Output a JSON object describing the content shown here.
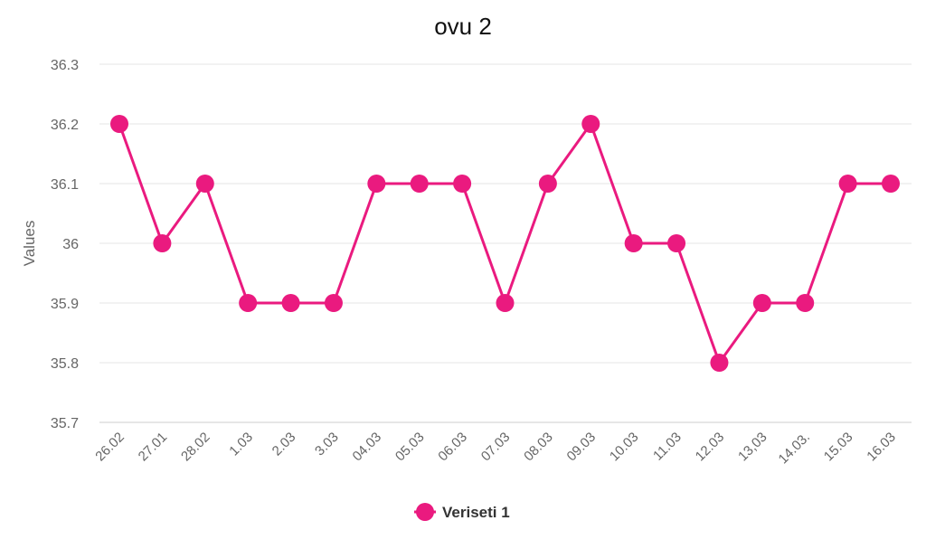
{
  "chart_data": {
    "type": "line",
    "title": "ovu 2",
    "xlabel": "",
    "ylabel": "Values",
    "ylim": [
      35.7,
      36.3
    ],
    "yticks": [
      "36.3",
      "36.2",
      "36.1",
      "36",
      "35.9",
      "35.8",
      "35.7"
    ],
    "categories": [
      "26.02",
      "27.01",
      "28.02",
      "1.03",
      "2.03",
      "3.03",
      "04.03",
      "05.03",
      "06.03",
      "07.03",
      "08.03",
      "09.03",
      "10.03",
      "11.03",
      "12.03",
      "13,03",
      "14.03.",
      "15.03",
      "16.03"
    ],
    "series": [
      {
        "name": "Veriseti 1",
        "color": "#ea1a7f",
        "values": [
          36.2,
          36.0,
          36.1,
          35.9,
          35.9,
          35.9,
          36.1,
          36.1,
          36.1,
          35.9,
          36.1,
          36.2,
          36.0,
          36.0,
          35.8,
          35.9,
          35.9,
          36.1,
          36.1
        ]
      }
    ],
    "grid": true,
    "legend_position": "bottom-center"
  }
}
